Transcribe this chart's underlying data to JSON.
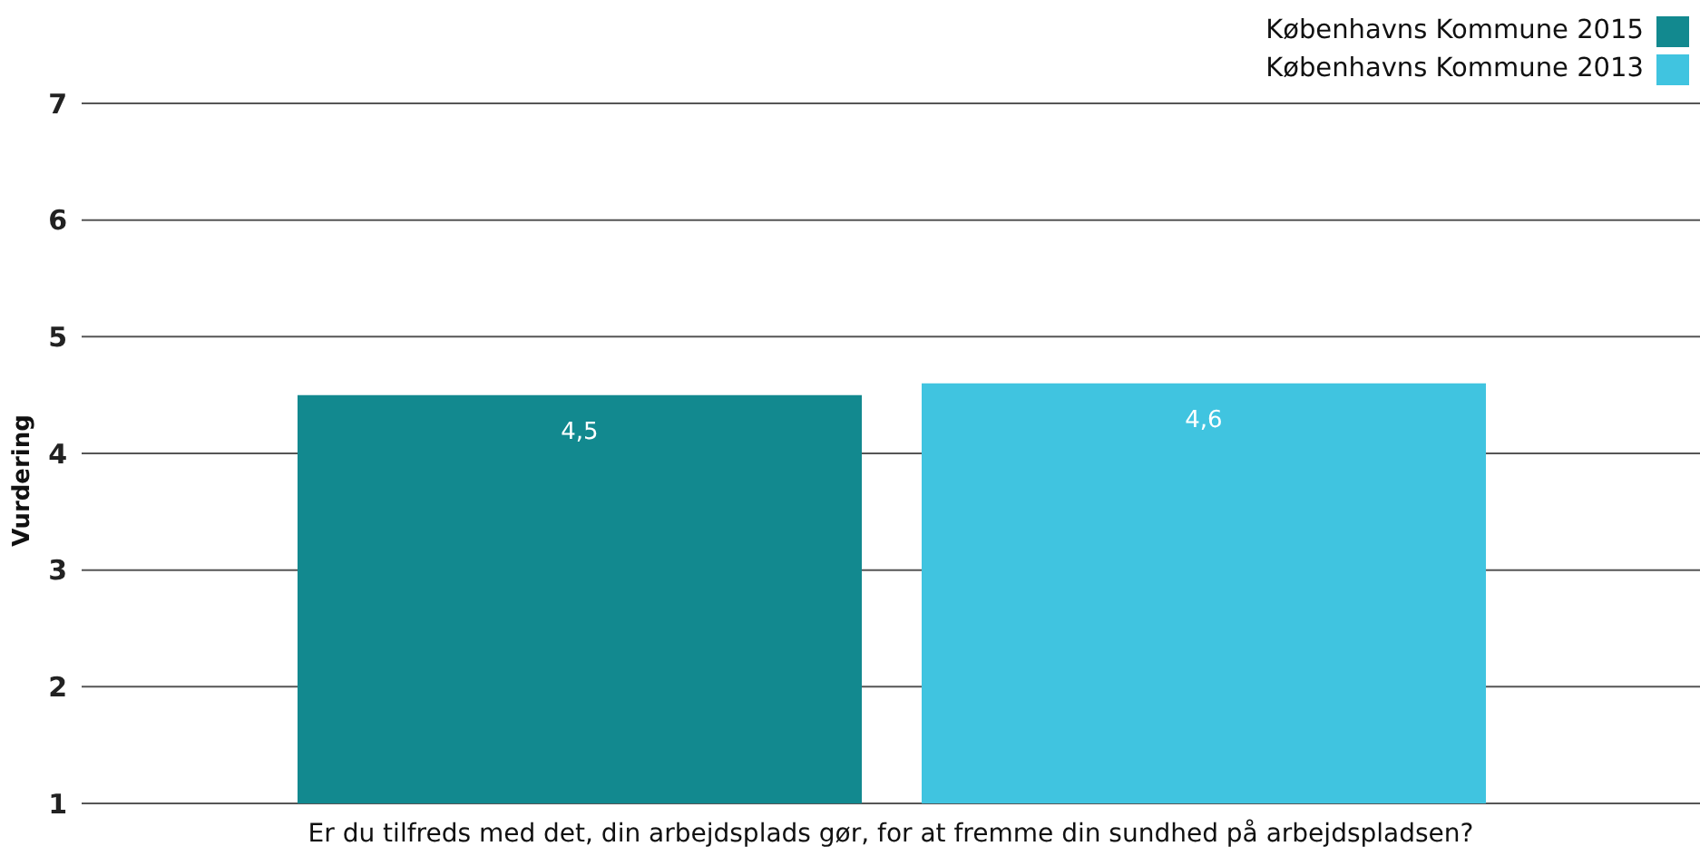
{
  "chart_data": {
    "type": "bar",
    "ylabel": "Vurdering",
    "categories": [
      "Er du tilfreds med det, din arbejdsplads gør, for at fremme din sundhed på arbejdspladsen?"
    ],
    "series": [
      {
        "name": "Københavns Kommune 2015",
        "color": "#12898f",
        "values": [
          4.5
        ],
        "value_labels": [
          "4,5"
        ]
      },
      {
        "name": "Københavns Kommune 2013",
        "color": "#40c4e0",
        "values": [
          4.6
        ],
        "value_labels": [
          "4,6"
        ]
      }
    ],
    "ylim": [
      1,
      7
    ],
    "yticks": [
      1,
      2,
      3,
      4,
      5,
      6,
      7
    ],
    "grid": "y",
    "legend": "top right"
  }
}
